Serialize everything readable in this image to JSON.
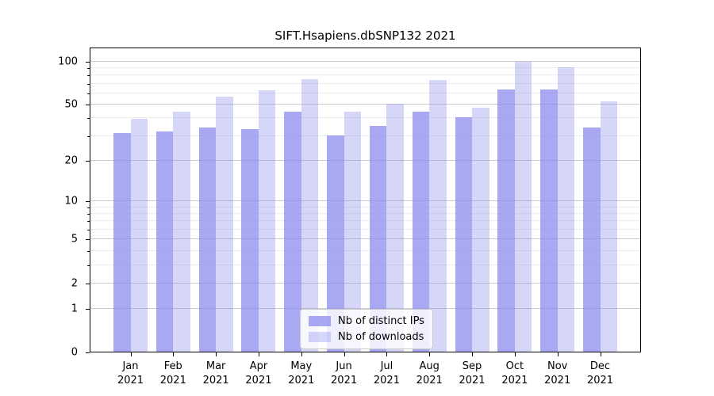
{
  "chart_data": {
    "type": "bar",
    "title": "SIFT.Hsapiens.dbSNP132 2021",
    "scale": "log1p",
    "grid": true,
    "legend_position": "bottom-center",
    "categories": [
      "Jan",
      "Feb",
      "Mar",
      "Apr",
      "May",
      "Jun",
      "Jul",
      "Aug",
      "Sep",
      "Oct",
      "Nov",
      "Dec"
    ],
    "year_label": "2021",
    "series": [
      {
        "name": "Nb of distinct IPs",
        "color": "#8888ee",
        "alpha": 0.72,
        "values": [
          31,
          32,
          34,
          33,
          44,
          30,
          35,
          44,
          40,
          63,
          63,
          34
        ]
      },
      {
        "name": "Nb of downloads",
        "color": "#8888ee",
        "alpha": 0.34,
        "values": [
          39,
          44,
          56,
          62,
          74,
          44,
          50,
          73,
          47,
          98,
          90,
          52
        ]
      }
    ],
    "yticks": [
      0,
      1,
      2,
      5,
      10,
      20,
      50,
      100
    ],
    "yticks_minor": [
      3,
      4,
      6,
      7,
      8,
      9,
      30,
      40,
      60,
      70,
      80,
      90
    ],
    "ylim": [
      0,
      125
    ]
  },
  "colors": {
    "grid_major": "#cbcbcb",
    "grid_minor": "#ececec",
    "spine": "#000000",
    "background": "#ffffff"
  }
}
